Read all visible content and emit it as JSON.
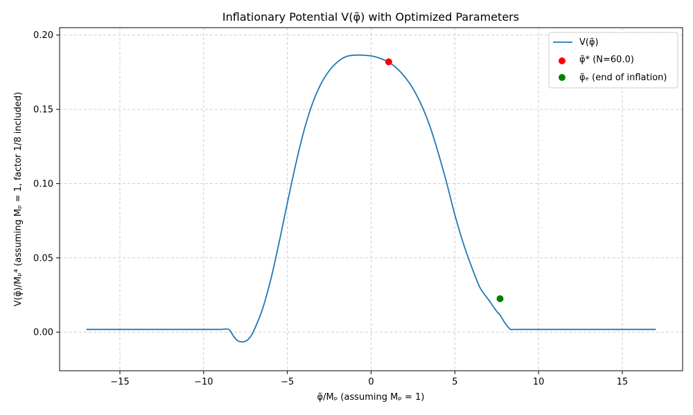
{
  "chart_data": {
    "type": "line",
    "title": "Inflationary Potential V(φ̃) with Optimized Parameters",
    "xlabel": "φ̃/Mₚ (assuming Mₚ = 1)",
    "ylabel": "V(φ̃)/Mₚ⁴ (assuming Mₚ = 1, factor 1/8 included)",
    "xlim": [
      -18.6,
      18.6
    ],
    "ylim": [
      -0.026,
      0.205
    ],
    "xticks": [
      -15,
      -10,
      -5,
      0,
      5,
      10,
      15
    ],
    "xtick_labels": [
      "−15",
      "−10",
      "−5",
      "0",
      "5",
      "10",
      "15"
    ],
    "yticks": [
      0.0,
      0.05,
      0.1,
      0.15,
      0.2
    ],
    "ytick_labels": [
      "0.00",
      "0.05",
      "0.10",
      "0.15",
      "0.20"
    ],
    "grid": true,
    "legend_position": "top-right",
    "series": [
      {
        "name": "V(φ̃)",
        "kind": "line",
        "color": "#1f77b4",
        "x": [
          -17,
          -16,
          -15,
          -14,
          -13,
          -12,
          -11,
          -10,
          -9,
          -8.5,
          -8.2,
          -8.0,
          -7.8,
          -7.6,
          -7.4,
          -7.2,
          -7.0,
          -6.5,
          -6.0,
          -5.5,
          -5.0,
          -4.5,
          -4.0,
          -3.5,
          -3.0,
          -2.5,
          -2.0,
          -1.5,
          -1.0,
          -0.5,
          -0.2,
          0.0,
          0.5,
          1.0,
          1.5,
          2.0,
          2.5,
          3.0,
          3.5,
          4.0,
          4.5,
          5.0,
          5.5,
          6.0,
          6.5,
          7.0,
          7.5,
          7.7,
          8.0,
          8.3,
          8.5,
          9,
          10,
          11,
          12,
          13,
          14,
          15,
          16,
          17
        ],
        "y": [
          0.0018,
          0.0018,
          0.0018,
          0.0018,
          0.0018,
          0.0018,
          0.0018,
          0.0018,
          0.0018,
          0.0018,
          -0.003,
          -0.0055,
          -0.0065,
          -0.0065,
          -0.0055,
          -0.003,
          0.001,
          0.015,
          0.035,
          0.06,
          0.087,
          0.113,
          0.136,
          0.154,
          0.167,
          0.176,
          0.182,
          0.1855,
          0.1865,
          0.1865,
          0.1862,
          0.186,
          0.1845,
          0.182,
          0.178,
          0.172,
          0.164,
          0.153,
          0.139,
          0.121,
          0.101,
          0.079,
          0.06,
          0.044,
          0.03,
          0.022,
          0.014,
          0.0115,
          0.006,
          0.002,
          0.0018,
          0.0018,
          0.0018,
          0.0018,
          0.0018,
          0.0018,
          0.0018,
          0.0018,
          0.0018,
          0.0018
        ]
      },
      {
        "name": "φ̃* (N=60.0)",
        "kind": "point",
        "color": "#ff0000",
        "x": [
          1.05
        ],
        "y": [
          0.182
        ]
      },
      {
        "name": "φ̃ₑ (end of inflation)",
        "kind": "point",
        "color": "#008000",
        "x": [
          7.7
        ],
        "y": [
          0.0225
        ]
      }
    ]
  }
}
